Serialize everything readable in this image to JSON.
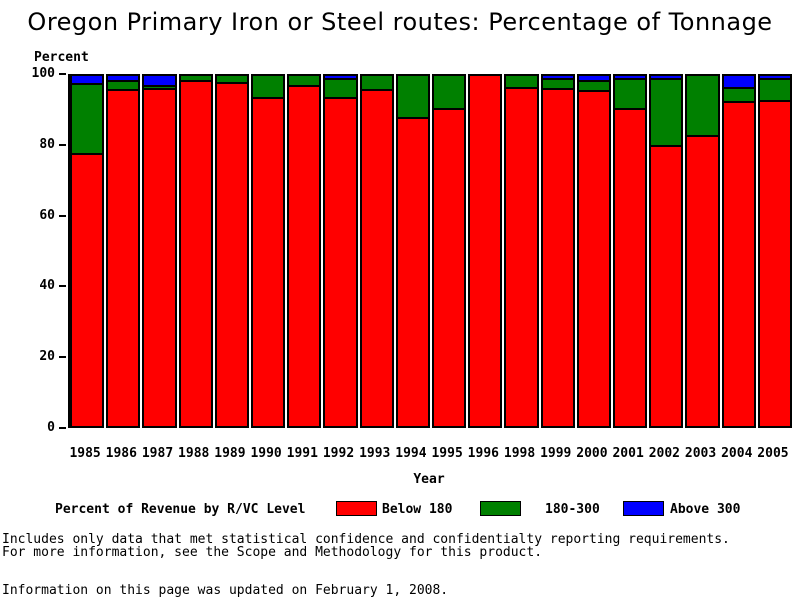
{
  "title": "Oregon Primary Iron or Steel routes: Percentage of Tonnage",
  "chart_data": {
    "type": "bar",
    "stacked": true,
    "title": "Oregon Primary Iron or Steel routes: Percentage of Tonnage",
    "ylabel": "Percent",
    "xlabel": "Year",
    "ylim": [
      0,
      100
    ],
    "yticks": [
      0,
      20,
      40,
      60,
      80,
      100
    ],
    "grid": false,
    "legend_title": "Percent of Revenue by R/VC Level",
    "legend_position": "bottom",
    "categories": [
      "1985",
      "1986",
      "1987",
      "1988",
      "1989",
      "1990",
      "1991",
      "1992",
      "1993",
      "1994",
      "1995",
      "1996",
      "1998",
      "1999",
      "2000",
      "2001",
      "2002",
      "2003",
      "2004",
      "2005"
    ],
    "series": [
      {
        "name": "Below 180",
        "color": "#ff0000",
        "values": [
          78.0,
          96.3,
          96.6,
          99.0,
          98.4,
          94.0,
          97.5,
          94.0,
          96.3,
          88.2,
          91.0,
          100.0,
          96.8,
          96.5,
          96.0,
          90.9,
          80.3,
          83.1,
          92.8,
          93.0
        ]
      },
      {
        "name": "180-300",
        "color": "#008000",
        "values": [
          20.0,
          2.7,
          0.9,
          1.0,
          1.6,
          6.0,
          2.5,
          5.3,
          3.7,
          11.8,
          9.0,
          0.0,
          3.2,
          2.9,
          3.0,
          8.6,
          19.1,
          16.9,
          4.2,
          6.3
        ]
      },
      {
        "name": "Above 300",
        "color": "#0000ff",
        "values": [
          2.0,
          1.0,
          2.5,
          0.0,
          0.0,
          0.0,
          0.0,
          0.7,
          0.0,
          0.0,
          0.0,
          0.0,
          0.0,
          0.6,
          1.0,
          0.5,
          0.6,
          0.0,
          3.0,
          0.7
        ]
      }
    ]
  },
  "legend": {
    "items": [
      {
        "label": "Below 180",
        "color": "#ff0000"
      },
      {
        "label": "180-300",
        "color": "#008000"
      },
      {
        "label": "Above 300",
        "color": "#0000ff"
      }
    ]
  },
  "footer": {
    "line1": "Includes only data that met statistical confidence and confidentialty reporting requirements.",
    "line2": "For more information, see the Scope and Methodology for this product.",
    "updated": "Information on this page was updated on February 1, 2008."
  }
}
